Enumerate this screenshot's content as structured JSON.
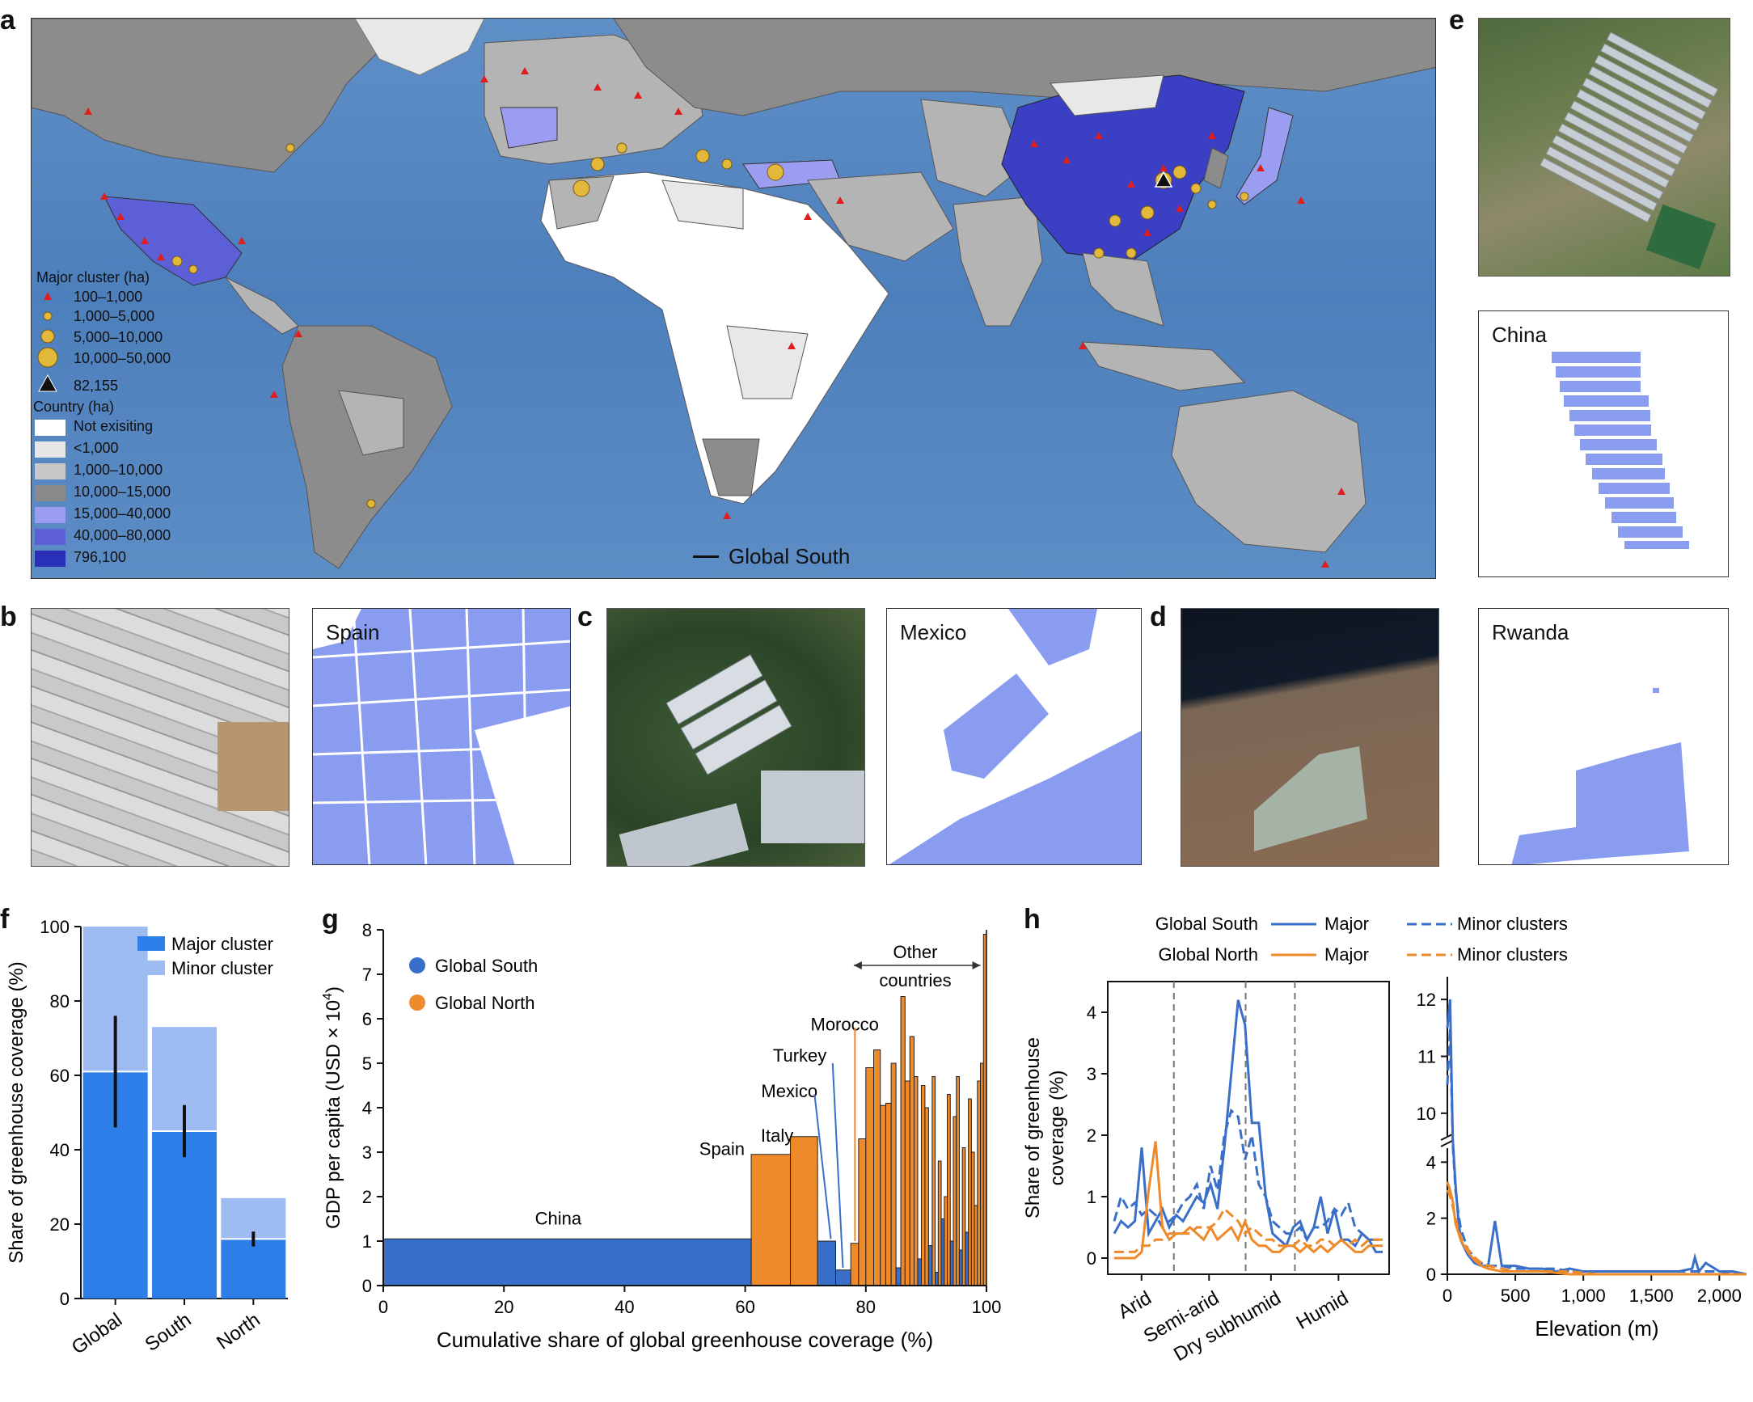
{
  "panels": {
    "a": "a",
    "b": "b",
    "c": "c",
    "d": "d",
    "e": "e",
    "f": "f",
    "g": "g",
    "h": "h"
  },
  "map": {
    "legend_major_title": "Major cluster (ha)",
    "legend_major": [
      "100–1,000",
      "1,000–5,000",
      "5,000–10,000",
      "10,000–50,000",
      "82,155"
    ],
    "legend_country_title": "Country (ha)",
    "legend_country": [
      {
        "label": "Not exisiting",
        "color": "#ffffff"
      },
      {
        "label": "<1,000",
        "color": "#e6e6e6"
      },
      {
        "label": "1,000–10,000",
        "color": "#c8c8c8"
      },
      {
        "label": "10,000–15,000",
        "color": "#8a8a8a"
      },
      {
        "label": "15,000–40,000",
        "color": "#9b9ef0"
      },
      {
        "label": "40,000–80,000",
        "color": "#5c5fd6"
      },
      {
        "label": "796,100",
        "color": "#2a2fb8"
      }
    ],
    "global_south_label": "Global South",
    "colors": {
      "ocean": "#5a8ac4",
      "land_dark": "#8c8c8c",
      "land_mid": "#b4b4b4",
      "land_light": "#e8e8e8",
      "china": "#3b3fc4",
      "triangle": "#e01e1e",
      "circle": "#e2b93b"
    }
  },
  "maps_small": {
    "spain": "Spain",
    "mexico": "Mexico",
    "rwanda": "Rwanda",
    "china": "China",
    "mask_color": "#8a9cf0"
  },
  "chart_data": [
    {
      "panel": "f",
      "type": "bar",
      "categories": [
        "Global",
        "South",
        "North"
      ],
      "series": [
        {
          "name": "Major cluster",
          "values": [
            61,
            45,
            16
          ],
          "color": "#2d7ee8"
        },
        {
          "name": "Minor cluster",
          "values": [
            39,
            28,
            11
          ],
          "color": "#9ebcf2"
        }
      ],
      "error_bars": [
        [
          46,
          76
        ],
        [
          38,
          52
        ],
        [
          14,
          18
        ]
      ],
      "ylabel": "Share of greenhouse coverage (%)",
      "ylim": [
        0,
        100
      ],
      "yticks": [
        0,
        20,
        40,
        60,
        80,
        100
      ],
      "legend": "top-right"
    },
    {
      "panel": "g",
      "type": "bar",
      "xlabel": "Cumulative share of global greenhouse coverage (%)",
      "ylabel": "GDP per capita (USD × 10",
      "ylabel_sup": "4",
      "ylabel_end": ")",
      "xlim": [
        0,
        100
      ],
      "ylim": [
        0,
        8
      ],
      "xticks": [
        0,
        20,
        40,
        60,
        80,
        100
      ],
      "yticks": [
        0,
        1,
        2,
        3,
        4,
        5,
        6,
        7,
        8
      ],
      "legend": [
        {
          "name": "Global South",
          "color": "#3a6fc9"
        },
        {
          "name": "Global North",
          "color": "#ee8a2a"
        }
      ],
      "annotations": [
        "China",
        "Spain",
        "Italy",
        "Mexico",
        "Turkey",
        "Morocco",
        "Other",
        "countries"
      ],
      "bars": [
        {
          "x0": 0,
          "x1": 61,
          "y": 1.05,
          "group": "south",
          "label": "China"
        },
        {
          "x0": 61,
          "x1": 67.5,
          "y": 2.95,
          "group": "north",
          "label": "Spain"
        },
        {
          "x0": 67.5,
          "x1": 72,
          "y": 3.35,
          "group": "north",
          "label": "Italy"
        },
        {
          "x0": 72,
          "x1": 75,
          "y": 1.0,
          "group": "south",
          "label": "Mexico"
        },
        {
          "x0": 75,
          "x1": 77.5,
          "y": 0.35,
          "group": "south",
          "label": "Morocco"
        },
        {
          "x0": 77.5,
          "x1": 78.8,
          "y": 0.95,
          "group": "north"
        },
        {
          "x0": 78.8,
          "x1": 80,
          "y": 3.3,
          "group": "north"
        },
        {
          "x0": 80,
          "x1": 81.3,
          "y": 4.9,
          "group": "north"
        },
        {
          "x0": 81.3,
          "x1": 82.4,
          "y": 5.3,
          "group": "north"
        },
        {
          "x0": 82.4,
          "x1": 83.3,
          "y": 4.05,
          "group": "north"
        },
        {
          "x0": 83.3,
          "x1": 84.2,
          "y": 4.1,
          "group": "north"
        },
        {
          "x0": 84.2,
          "x1": 85,
          "y": 5.0,
          "group": "north"
        },
        {
          "x0": 85,
          "x1": 85.8,
          "y": 0.4,
          "group": "south"
        },
        {
          "x0": 85.8,
          "x1": 86.5,
          "y": 6.5,
          "group": "north"
        },
        {
          "x0": 86.5,
          "x1": 87.3,
          "y": 4.6,
          "group": "north"
        },
        {
          "x0": 87.3,
          "x1": 88,
          "y": 5.6,
          "group": "north"
        },
        {
          "x0": 88,
          "x1": 88.6,
          "y": 4.7,
          "group": "north"
        },
        {
          "x0": 88.6,
          "x1": 89.2,
          "y": 0.6,
          "group": "south"
        },
        {
          "x0": 89.2,
          "x1": 89.8,
          "y": 4.5,
          "group": "north"
        },
        {
          "x0": 89.8,
          "x1": 90.4,
          "y": 4.0,
          "group": "north"
        },
        {
          "x0": 90.4,
          "x1": 91,
          "y": 0.9,
          "group": "south"
        },
        {
          "x0": 91,
          "x1": 91.5,
          "y": 4.7,
          "group": "north"
        },
        {
          "x0": 91.5,
          "x1": 92,
          "y": 0.3,
          "group": "south"
        },
        {
          "x0": 92,
          "x1": 92.5,
          "y": 2.8,
          "group": "north"
        },
        {
          "x0": 92.5,
          "x1": 93,
          "y": 1.5,
          "group": "south"
        },
        {
          "x0": 93,
          "x1": 93.5,
          "y": 2.0,
          "group": "north"
        },
        {
          "x0": 93.5,
          "x1": 94,
          "y": 4.3,
          "group": "north"
        },
        {
          "x0": 94,
          "x1": 94.5,
          "y": 1.0,
          "group": "south"
        },
        {
          "x0": 94.5,
          "x1": 95,
          "y": 3.8,
          "group": "north"
        },
        {
          "x0": 95,
          "x1": 95.5,
          "y": 4.7,
          "group": "north"
        },
        {
          "x0": 95.5,
          "x1": 96,
          "y": 0.8,
          "group": "south"
        },
        {
          "x0": 96,
          "x1": 96.5,
          "y": 3.1,
          "group": "north"
        },
        {
          "x0": 96.5,
          "x1": 97,
          "y": 1.2,
          "group": "south"
        },
        {
          "x0": 97,
          "x1": 97.5,
          "y": 4.2,
          "group": "north"
        },
        {
          "x0": 97.5,
          "x1": 98,
          "y": 3.0,
          "group": "north"
        },
        {
          "x0": 98,
          "x1": 98.5,
          "y": 1.8,
          "group": "north"
        },
        {
          "x0": 98.5,
          "x1": 99,
          "y": 4.6,
          "group": "north"
        },
        {
          "x0": 99,
          "x1": 99.5,
          "y": 5.0,
          "group": "north"
        },
        {
          "x0": 99.5,
          "x1": 100,
          "y": 7.9,
          "group": "north"
        }
      ]
    },
    {
      "panel": "h-left",
      "type": "line",
      "ylabel": "Share of greenhouse coverage (%)",
      "ylim": [
        0,
        4.5
      ],
      "yticks": [
        0,
        1,
        2,
        3,
        4
      ],
      "xcategories": [
        "Arid",
        "Semi-arid",
        "Dry subhumid",
        "Humid"
      ],
      "legend": {
        "rows": [
          "Global South",
          "Global North"
        ],
        "major": "Major",
        "minor": "Minor clusters"
      },
      "series": [
        {
          "name": "Global South Major",
          "color": "#3a6fc9",
          "dash": false,
          "y": [
            0.4,
            0.6,
            0.5,
            0.6,
            1.8,
            0.4,
            0.6,
            0.8,
            0.5,
            0.7,
            0.6,
            0.8,
            1.0,
            0.9,
            1.2,
            0.8,
            1.8,
            3.0,
            4.2,
            3.8,
            2.2,
            2.2,
            1.0,
            0.4,
            0.3,
            0.2,
            0.5,
            0.6,
            0.3,
            0.5,
            1.0,
            0.4,
            0.8,
            0.3,
            0.3,
            0.2,
            0.4,
            0.3,
            0.1,
            0.1
          ]
        },
        {
          "name": "Global South Minor clusters",
          "color": "#3a6fc9",
          "dash": true,
          "y": [
            0.6,
            1.0,
            0.8,
            0.9,
            0.7,
            0.8,
            0.7,
            0.5,
            0.6,
            0.7,
            0.9,
            1.0,
            1.2,
            0.8,
            1.5,
            1.1,
            2.0,
            2.4,
            2.3,
            1.6,
            2.0,
            1.2,
            1.0,
            0.6,
            0.5,
            0.4,
            0.4,
            0.5,
            0.3,
            0.5,
            0.5,
            0.6,
            0.8,
            0.7,
            0.9,
            0.5,
            0.4,
            0.3,
            0.3,
            0.3
          ]
        },
        {
          "name": "Global North Major",
          "color": "#ee8a2a",
          "dash": false,
          "y": [
            0.0,
            0.0,
            0.0,
            0.0,
            0.1,
            1.1,
            1.9,
            0.5,
            0.3,
            0.4,
            0.4,
            0.5,
            0.4,
            0.3,
            0.5,
            0.3,
            0.4,
            0.5,
            0.3,
            0.6,
            0.3,
            0.2,
            0.2,
            0.1,
            0.1,
            0.2,
            0.2,
            0.1,
            0.2,
            0.1,
            0.2,
            0.1,
            0.2,
            0.3,
            0.2,
            0.1,
            0.1,
            0.2,
            0.2,
            0.2
          ]
        },
        {
          "name": "Global North Minor clusters",
          "color": "#ee8a2a",
          "dash": true,
          "y": [
            0.1,
            0.1,
            0.1,
            0.1,
            0.2,
            0.2,
            0.3,
            0.3,
            0.4,
            0.4,
            0.4,
            0.4,
            0.5,
            0.5,
            0.5,
            0.6,
            0.8,
            0.7,
            0.6,
            0.4,
            0.5,
            0.4,
            0.3,
            0.3,
            0.2,
            0.2,
            0.2,
            0.3,
            0.2,
            0.2,
            0.3,
            0.3,
            0.2,
            0.3,
            0.2,
            0.3,
            0.2,
            0.3,
            0.3,
            0.3
          ]
        }
      ]
    },
    {
      "panel": "h-right",
      "type": "line",
      "xlabel": "Elevation (m)",
      "xlim": [
        0,
        2200
      ],
      "xticks": [
        0,
        500,
        1000,
        1500,
        2000
      ],
      "xtick_labels": [
        "0",
        "500",
        "1,000",
        "1,500",
        "2,000"
      ],
      "ytick_labels_lower": [
        "0",
        "2",
        "4"
      ],
      "ytick_labels_upper": [
        "10",
        "11",
        "12"
      ],
      "series": [
        {
          "name": "Global South Major",
          "color": "#3a6fc9",
          "dash": false,
          "x": [
            0,
            20,
            40,
            60,
            80,
            100,
            150,
            200,
            250,
            300,
            350,
            400,
            500,
            600,
            700,
            800,
            900,
            1000,
            1100,
            1200,
            1300,
            1400,
            1500,
            1600,
            1700,
            1800,
            1820,
            1850,
            1900,
            2000,
            2100,
            2200
          ],
          "y": [
            11.5,
            12.0,
            8.0,
            3.2,
            2.0,
            1.2,
            0.7,
            0.4,
            0.3,
            0.3,
            1.9,
            0.3,
            0.3,
            0.2,
            0.2,
            0.1,
            0.2,
            0.1,
            0.1,
            0.1,
            0.1,
            0.1,
            0.1,
            0.1,
            0.1,
            0.2,
            0.6,
            0.1,
            0.4,
            0.1,
            0.1,
            0.0
          ]
        },
        {
          "name": "Global South Minor clusters",
          "color": "#3a6fc9",
          "dash": true,
          "x": [
            0,
            20,
            40,
            60,
            80,
            100,
            150,
            200,
            250,
            300,
            350,
            400,
            500,
            600,
            700,
            800,
            900,
            1000,
            1200,
            1400,
            1600,
            1800,
            2000,
            2200
          ],
          "y": [
            10.5,
            11.5,
            6.0,
            3.0,
            2.2,
            1.6,
            0.9,
            0.6,
            0.4,
            0.3,
            0.3,
            0.3,
            0.2,
            0.2,
            0.2,
            0.2,
            0.1,
            0.1,
            0.1,
            0.1,
            0.1,
            0.1,
            0.1,
            0.0
          ]
        },
        {
          "name": "Global North Major",
          "color": "#ee8a2a",
          "dash": false,
          "x": [
            0,
            20,
            40,
            60,
            80,
            100,
            150,
            200,
            250,
            300,
            400,
            500,
            700,
            900,
            1100,
            1300,
            1500,
            1700,
            1900,
            2200
          ],
          "y": [
            3.3,
            3.0,
            2.6,
            1.8,
            1.5,
            1.2,
            0.8,
            0.5,
            0.3,
            0.2,
            0.1,
            0.1,
            0.1,
            0.0,
            0.0,
            0.0,
            0.0,
            0.0,
            0.0,
            0.0
          ]
        },
        {
          "name": "Global North Minor clusters",
          "color": "#ee8a2a",
          "dash": true,
          "x": [
            0,
            20,
            40,
            60,
            80,
            100,
            150,
            200,
            250,
            300,
            400,
            500,
            700,
            900,
            1100,
            1300,
            1500,
            1700,
            1900,
            2200
          ],
          "y": [
            3.0,
            2.8,
            2.4,
            2.0,
            1.6,
            1.3,
            0.9,
            0.6,
            0.4,
            0.3,
            0.2,
            0.1,
            0.1,
            0.1,
            0.0,
            0.0,
            0.0,
            0.0,
            0.0,
            0.0
          ]
        }
      ]
    }
  ]
}
